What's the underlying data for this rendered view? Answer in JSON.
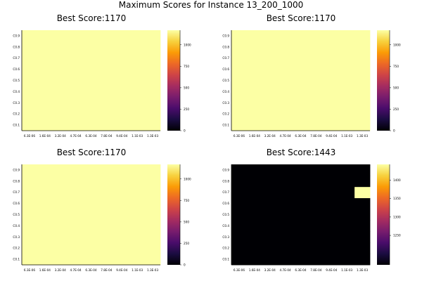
{
  "suptitle": "Maximum Scores for Instance 13_200_1000",
  "colormap": [
    "#000004",
    "#1b0c41",
    "#4a0c6b",
    "#781c6d",
    "#a52c60",
    "#cf4446",
    "#ed6925",
    "#fb9b06",
    "#f7d13d",
    "#fcffa4"
  ],
  "chart_data": [
    {
      "type": "heatmap",
      "title": "Best Score:1170",
      "xlabel": "",
      "ylabel": "",
      "x_ticks": [
        "6.3E-06",
        "1.6E-04",
        "3.2E-04",
        "4.7E-04",
        "6.3E-04",
        "7.8E-04",
        "9.4E-04",
        "1.1E-03",
        "1.3E-03"
      ],
      "y_ticks": [
        "C0.1",
        "C0.2",
        "C0.3",
        "C0.4",
        "C0.5",
        "C0.6",
        "C0.7",
        "C0.8",
        "C0.9"
      ],
      "values": [
        [
          1170,
          1170,
          1170,
          1170,
          1170,
          1170,
          1170,
          1170,
          1170
        ],
        [
          1170,
          1170,
          1170,
          1170,
          1170,
          1170,
          1170,
          1170,
          1170
        ],
        [
          1170,
          1170,
          1170,
          1170,
          1170,
          1170,
          1170,
          1170,
          1170
        ],
        [
          1170,
          1170,
          1170,
          1170,
          1170,
          1170,
          1170,
          1170,
          1170
        ],
        [
          1170,
          1170,
          1170,
          1170,
          1170,
          1170,
          1170,
          1170,
          1170
        ],
        [
          1170,
          1170,
          1170,
          1170,
          1170,
          1170,
          1170,
          1170,
          1170
        ],
        [
          1170,
          1170,
          1170,
          1170,
          1170,
          1170,
          1170,
          1170,
          1170
        ],
        [
          1170,
          1170,
          1170,
          1170,
          1170,
          1170,
          1170,
          1170,
          1170
        ],
        [
          1170,
          1170,
          1170,
          1170,
          1170,
          1170,
          1170,
          1170,
          1170
        ]
      ],
      "clim": [
        0,
        1170
      ],
      "colorbar_ticks": [
        "0",
        "250",
        "500",
        "750",
        "1000"
      ],
      "colorbar_values": [
        0,
        250,
        500,
        750,
        1000
      ]
    },
    {
      "type": "heatmap",
      "title": "Best Score:1170",
      "xlabel": "",
      "ylabel": "",
      "x_ticks": [
        "6.3E-06",
        "1.6E-04",
        "3.2E-04",
        "4.7E-04",
        "6.3E-04",
        "7.8E-04",
        "9.4E-04",
        "1.1E-03",
        "1.3E-03"
      ],
      "y_ticks": [
        "C0.1",
        "C0.2",
        "C0.3",
        "C0.4",
        "C0.5",
        "C0.6",
        "C0.7",
        "C0.8",
        "C0.9"
      ],
      "values": [
        [
          1170,
          1170,
          1170,
          1170,
          1170,
          1170,
          1170,
          1170,
          1170
        ],
        [
          1170,
          1170,
          1170,
          1170,
          1170,
          1170,
          1170,
          1170,
          1170
        ],
        [
          1170,
          1170,
          1170,
          1170,
          1170,
          1170,
          1170,
          1170,
          1170
        ],
        [
          1170,
          1170,
          1170,
          1170,
          1170,
          1170,
          1170,
          1170,
          1170
        ],
        [
          1170,
          1170,
          1170,
          1170,
          1170,
          1170,
          1170,
          1170,
          1170
        ],
        [
          1170,
          1170,
          1170,
          1170,
          1170,
          1170,
          1170,
          1170,
          1170
        ],
        [
          1170,
          1170,
          1170,
          1170,
          1170,
          1170,
          1170,
          1170,
          1170
        ],
        [
          1170,
          1170,
          1170,
          1170,
          1170,
          1170,
          1170,
          1170,
          1170
        ],
        [
          1170,
          1170,
          1170,
          1170,
          1170,
          1170,
          1170,
          1170,
          1170
        ]
      ],
      "clim": [
        0,
        1170
      ],
      "colorbar_ticks": [
        "0",
        "250",
        "500",
        "750",
        "1000"
      ],
      "colorbar_values": [
        0,
        250,
        500,
        750,
        1000
      ]
    },
    {
      "type": "heatmap",
      "title": "Best Score:1170",
      "xlabel": "",
      "ylabel": "",
      "x_ticks": [
        "6.3E-06",
        "1.6E-04",
        "3.2E-04",
        "4.7E-04",
        "6.3E-04",
        "7.8E-04",
        "9.4E-04",
        "1.1E-03",
        "1.3E-03"
      ],
      "y_ticks": [
        "C0.1",
        "C0.2",
        "C0.3",
        "C0.4",
        "C0.5",
        "C0.6",
        "C0.7",
        "C0.8",
        "C0.9"
      ],
      "values": [
        [
          1170,
          1170,
          1170,
          1170,
          1170,
          1170,
          1170,
          1170,
          1170
        ],
        [
          1170,
          1170,
          1170,
          1170,
          1170,
          1170,
          1170,
          1170,
          1170
        ],
        [
          1170,
          1170,
          1170,
          1170,
          1170,
          1170,
          1170,
          1170,
          1170
        ],
        [
          1170,
          1170,
          1170,
          1170,
          1170,
          1170,
          1170,
          1170,
          1170
        ],
        [
          1170,
          1170,
          1170,
          1170,
          1170,
          1170,
          1170,
          1170,
          1170
        ],
        [
          1170,
          1170,
          1170,
          1170,
          1170,
          1170,
          1170,
          1170,
          1170
        ],
        [
          1170,
          1170,
          1170,
          1170,
          1170,
          1170,
          1170,
          1170,
          1170
        ],
        [
          1170,
          1170,
          1170,
          1170,
          1170,
          1170,
          1170,
          1170,
          1170
        ],
        [
          1170,
          1170,
          1170,
          1170,
          1170,
          1170,
          1170,
          1170,
          1170
        ]
      ],
      "clim": [
        0,
        1170
      ],
      "colorbar_ticks": [
        "0",
        "250",
        "500",
        "750",
        "1000"
      ],
      "colorbar_values": [
        0,
        250,
        500,
        750,
        1000
      ]
    },
    {
      "type": "heatmap",
      "title": "Best Score:1443",
      "xlabel": "",
      "ylabel": "",
      "x_ticks": [
        "6.3E-06",
        "1.6E-04",
        "3.2E-04",
        "4.7E-04",
        "6.3E-04",
        "7.8E-04",
        "9.4E-04",
        "1.1E-03",
        "1.3E-03"
      ],
      "y_ticks": [
        "C0.1",
        "C0.2",
        "C0.3",
        "C0.4",
        "C0.5",
        "C0.6",
        "C0.7",
        "C0.8",
        "C0.9"
      ],
      "values": [
        [
          1170,
          1170,
          1170,
          1170,
          1170,
          1170,
          1170,
          1170,
          1170
        ],
        [
          1170,
          1170,
          1170,
          1170,
          1170,
          1170,
          1170,
          1170,
          1170
        ],
        [
          1170,
          1170,
          1170,
          1170,
          1170,
          1170,
          1170,
          1170,
          1170
        ],
        [
          1170,
          1170,
          1170,
          1170,
          1170,
          1170,
          1170,
          1170,
          1170
        ],
        [
          1170,
          1170,
          1170,
          1170,
          1170,
          1170,
          1170,
          1170,
          1170
        ],
        [
          1170,
          1170,
          1170,
          1170,
          1170,
          1170,
          1170,
          1170,
          1170
        ],
        [
          1170,
          1170,
          1170,
          1170,
          1170,
          1170,
          1170,
          1170,
          1443
        ],
        [
          1170,
          1170,
          1170,
          1170,
          1170,
          1170,
          1170,
          1170,
          1170
        ],
        [
          1170,
          1170,
          1170,
          1170,
          1170,
          1170,
          1170,
          1170,
          1170
        ]
      ],
      "clim": [
        1170,
        1443
      ],
      "colorbar_ticks": [
        "1250",
        "1300",
        "1350",
        "1400"
      ],
      "colorbar_values": [
        1250,
        1300,
        1350,
        1400
      ]
    }
  ]
}
